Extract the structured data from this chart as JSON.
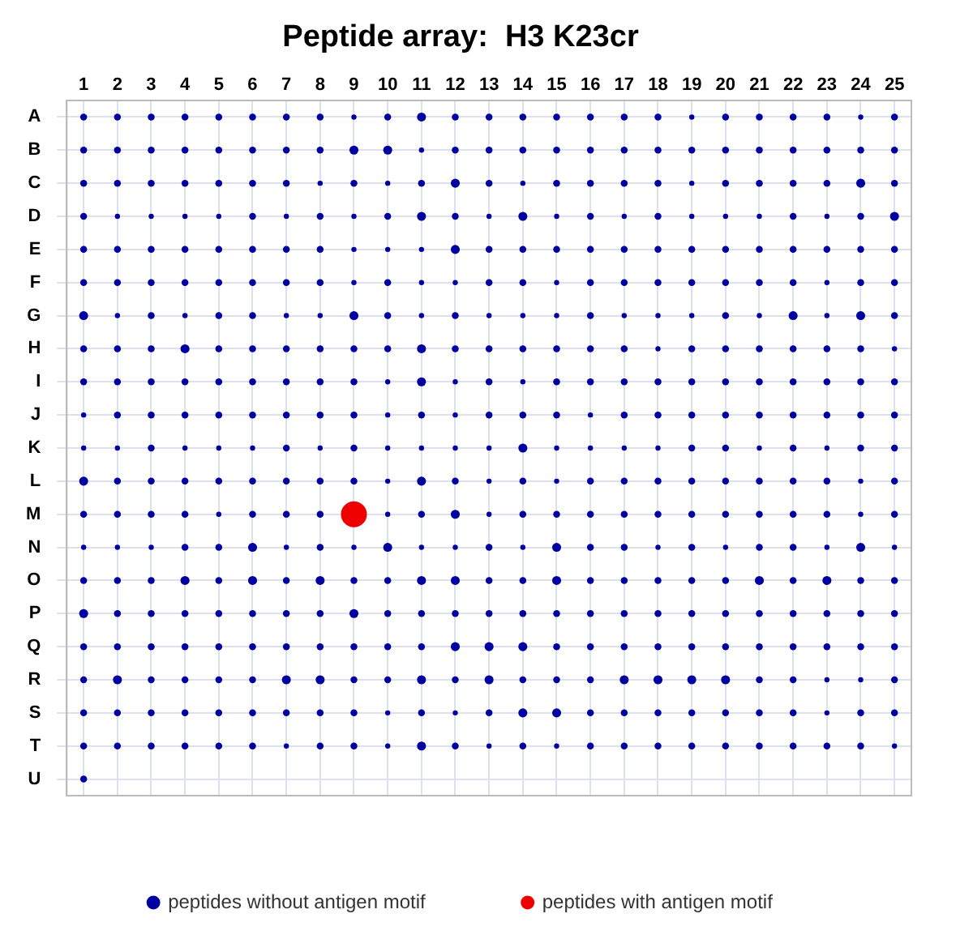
{
  "chart_data": {
    "type": "bubble",
    "orientation": "horizontal",
    "title": "Peptide array:  H3 K23cr",
    "categories": [
      "A",
      "B",
      "C",
      "D",
      "E",
      "F",
      "G",
      "H",
      "I",
      "J",
      "K",
      "L",
      "M",
      "N",
      "O",
      "P",
      "Q",
      "R",
      "S",
      "T",
      "U"
    ],
    "xlim": [
      0.5,
      25.5
    ],
    "xticks": [
      1,
      2,
      3,
      4,
      5,
      6,
      7,
      8,
      9,
      10,
      11,
      12,
      13,
      14,
      15,
      16,
      17,
      18,
      19,
      20,
      21,
      22,
      23,
      24,
      25
    ],
    "grid": true,
    "legend": "bottom",
    "marker": "circle",
    "series": [
      {
        "name": "peptides without antigen motif",
        "color": "#0000a0",
        "values": [
          1,
          1,
          1,
          1,
          1,
          1,
          1,
          1,
          1,
          1,
          1,
          1,
          1,
          1,
          1,
          1,
          1,
          1,
          1,
          1,
          1
        ],
        "sizes": [
          0.07,
          0.07,
          0.07,
          0.07,
          0.07,
          0.07,
          0.12,
          0.07,
          0.07,
          0.04,
          0.04,
          0.12,
          0.07,
          0.04,
          0.07,
          0.12,
          0.07,
          0.07,
          0.07,
          0.07,
          0.07
        ]
      },
      {
        "color": "#0000a0",
        "values": [
          2,
          2,
          2,
          2,
          2,
          2,
          2,
          2,
          2,
          2,
          2,
          2,
          2,
          2,
          2,
          2,
          2,
          2,
          2,
          2,
          null
        ],
        "sizes": [
          0.07,
          0.07,
          0.07,
          0.04,
          0.07,
          0.07,
          0.04,
          0.07,
          0.07,
          0.07,
          0.04,
          0.07,
          0.07,
          0.04,
          0.07,
          0.07,
          0.07,
          0.12,
          0.07,
          0.07,
          null
        ]
      },
      {
        "color": "#0000a0",
        "values": [
          3,
          3,
          3,
          3,
          3,
          3,
          3,
          3,
          3,
          3,
          3,
          3,
          3,
          3,
          3,
          3,
          3,
          3,
          3,
          3,
          null
        ],
        "sizes": [
          0.07,
          0.07,
          0.07,
          0.04,
          0.07,
          0.07,
          0.07,
          0.07,
          0.07,
          0.07,
          0.07,
          0.07,
          0.07,
          0.04,
          0.07,
          0.07,
          0.07,
          0.07,
          0.07,
          0.07,
          null
        ]
      },
      {
        "color": "#0000a0",
        "values": [
          4,
          4,
          4,
          4,
          4,
          4,
          4,
          4,
          4,
          4,
          4,
          4,
          4,
          4,
          4,
          4,
          4,
          4,
          4,
          4,
          null
        ],
        "sizes": [
          0.07,
          0.07,
          0.07,
          0.04,
          0.07,
          0.07,
          0.04,
          0.12,
          0.07,
          0.07,
          0.04,
          0.07,
          0.07,
          0.07,
          0.12,
          0.07,
          0.07,
          0.07,
          0.07,
          0.07,
          null
        ]
      },
      {
        "color": "#0000a0",
        "values": [
          5,
          5,
          5,
          5,
          5,
          5,
          5,
          5,
          5,
          5,
          5,
          5,
          5,
          5,
          5,
          5,
          5,
          5,
          5,
          5,
          null
        ],
        "sizes": [
          0.07,
          0.07,
          0.07,
          0.04,
          0.07,
          0.07,
          0.07,
          0.07,
          0.07,
          0.07,
          0.04,
          0.07,
          0.04,
          0.07,
          0.07,
          0.07,
          0.07,
          0.07,
          0.07,
          0.07,
          null
        ]
      },
      {
        "color": "#0000a0",
        "values": [
          6,
          6,
          6,
          6,
          6,
          6,
          6,
          6,
          6,
          6,
          6,
          6,
          6,
          6,
          6,
          6,
          6,
          6,
          6,
          6,
          null
        ],
        "sizes": [
          0.07,
          0.07,
          0.07,
          0.07,
          0.07,
          0.07,
          0.07,
          0.07,
          0.07,
          0.07,
          0.04,
          0.07,
          0.07,
          0.12,
          0.12,
          0.07,
          0.07,
          0.07,
          0.07,
          0.07,
          null
        ]
      },
      {
        "color": "#0000a0",
        "values": [
          7,
          7,
          7,
          7,
          7,
          7,
          7,
          7,
          7,
          7,
          7,
          7,
          7,
          7,
          7,
          7,
          7,
          7,
          7,
          7,
          null
        ],
        "sizes": [
          0.07,
          0.07,
          0.07,
          0.04,
          0.07,
          0.07,
          0.04,
          0.07,
          0.07,
          0.07,
          0.07,
          0.07,
          0.07,
          0.04,
          0.07,
          0.07,
          0.07,
          0.12,
          0.07,
          0.04,
          null
        ]
      },
      {
        "color": "#0000a0",
        "values": [
          8,
          8,
          8,
          8,
          8,
          8,
          8,
          8,
          8,
          8,
          8,
          8,
          8,
          8,
          8,
          8,
          8,
          8,
          8,
          8,
          null
        ],
        "sizes": [
          0.07,
          0.07,
          0.04,
          0.07,
          0.07,
          0.07,
          0.04,
          0.07,
          0.07,
          0.07,
          0.04,
          0.07,
          0.07,
          0.07,
          0.12,
          0.07,
          0.07,
          0.12,
          0.07,
          0.07,
          null
        ]
      },
      {
        "color": "#0000a0",
        "values": [
          9,
          9,
          9,
          9,
          9,
          9,
          9,
          9,
          9,
          9,
          9,
          9,
          null,
          9,
          9,
          9,
          9,
          9,
          9,
          9,
          null
        ],
        "sizes": [
          0.04,
          0.12,
          0.07,
          0.04,
          0.04,
          0.04,
          0.12,
          0.07,
          0.07,
          0.07,
          0.07,
          0.07,
          null,
          0.04,
          0.07,
          0.12,
          0.07,
          0.07,
          0.07,
          0.07,
          null
        ]
      },
      {
        "color": "#0000a0",
        "values": [
          10,
          10,
          10,
          10,
          10,
          10,
          10,
          10,
          10,
          10,
          10,
          10,
          10,
          10,
          10,
          10,
          10,
          10,
          10,
          10,
          null
        ],
        "sizes": [
          0.07,
          0.12,
          0.04,
          0.07,
          0.04,
          0.07,
          0.07,
          0.07,
          0.04,
          0.04,
          0.04,
          0.04,
          0.04,
          0.12,
          0.07,
          0.07,
          0.07,
          0.07,
          0.04,
          0.04,
          null
        ]
      },
      {
        "color": "#0000a0",
        "values": [
          11,
          11,
          11,
          11,
          11,
          11,
          11,
          11,
          11,
          11,
          11,
          11,
          11,
          11,
          11,
          11,
          11,
          11,
          11,
          11,
          null
        ],
        "sizes": [
          0.12,
          0.04,
          0.07,
          0.12,
          0.04,
          0.04,
          0.04,
          0.12,
          0.12,
          0.07,
          0.04,
          0.12,
          0.07,
          0.04,
          0.12,
          0.07,
          0.07,
          0.12,
          0.07,
          0.12,
          null
        ]
      },
      {
        "color": "#0000a0",
        "values": [
          12,
          12,
          12,
          12,
          12,
          12,
          12,
          12,
          12,
          12,
          12,
          12,
          12,
          12,
          12,
          12,
          12,
          12,
          12,
          12,
          null
        ],
        "sizes": [
          0.07,
          0.07,
          0.12,
          0.07,
          0.12,
          0.04,
          0.07,
          0.07,
          0.04,
          0.04,
          0.04,
          0.07,
          0.12,
          0.04,
          0.12,
          0.07,
          0.12,
          0.07,
          0.04,
          0.07,
          null
        ]
      },
      {
        "color": "#0000a0",
        "values": [
          13,
          13,
          13,
          13,
          13,
          13,
          13,
          13,
          13,
          13,
          13,
          13,
          13,
          13,
          13,
          13,
          13,
          13,
          13,
          13,
          null
        ],
        "sizes": [
          0.07,
          0.07,
          0.07,
          0.04,
          0.07,
          0.07,
          0.04,
          0.07,
          0.07,
          0.07,
          0.04,
          0.04,
          0.04,
          0.07,
          0.07,
          0.07,
          0.12,
          0.12,
          0.07,
          0.04,
          null
        ]
      },
      {
        "color": "#0000a0",
        "values": [
          14,
          14,
          14,
          14,
          14,
          14,
          14,
          14,
          14,
          14,
          14,
          14,
          14,
          14,
          14,
          14,
          14,
          14,
          14,
          14,
          null
        ],
        "sizes": [
          0.07,
          0.07,
          0.04,
          0.12,
          0.07,
          0.07,
          0.04,
          0.07,
          0.04,
          0.07,
          0.12,
          0.07,
          0.07,
          0.04,
          0.07,
          0.07,
          0.12,
          0.07,
          0.12,
          0.07,
          null
        ]
      },
      {
        "color": "#0000a0",
        "values": [
          15,
          15,
          15,
          15,
          15,
          15,
          15,
          15,
          15,
          15,
          15,
          15,
          15,
          15,
          15,
          15,
          15,
          15,
          15,
          15,
          null
        ],
        "sizes": [
          0.07,
          0.07,
          0.07,
          0.04,
          0.07,
          0.04,
          0.04,
          0.07,
          0.07,
          0.07,
          0.04,
          0.04,
          0.07,
          0.12,
          0.12,
          0.07,
          0.07,
          0.07,
          0.12,
          0.04,
          null
        ]
      },
      {
        "color": "#0000a0",
        "values": [
          16,
          16,
          16,
          16,
          16,
          16,
          16,
          16,
          16,
          16,
          16,
          16,
          16,
          16,
          16,
          16,
          16,
          16,
          16,
          16,
          null
        ],
        "sizes": [
          0.07,
          0.07,
          0.07,
          0.07,
          0.07,
          0.07,
          0.07,
          0.07,
          0.07,
          0.04,
          0.04,
          0.07,
          0.07,
          0.07,
          0.07,
          0.07,
          0.07,
          0.07,
          0.07,
          0.07,
          null
        ]
      },
      {
        "color": "#0000a0",
        "values": [
          17,
          17,
          17,
          17,
          17,
          17,
          17,
          17,
          17,
          17,
          17,
          17,
          17,
          17,
          17,
          17,
          17,
          17,
          17,
          17,
          null
        ],
        "sizes": [
          0.07,
          0.07,
          0.07,
          0.04,
          0.07,
          0.07,
          0.04,
          0.07,
          0.07,
          0.07,
          0.04,
          0.07,
          0.07,
          0.07,
          0.07,
          0.07,
          0.07,
          0.12,
          0.07,
          0.07,
          null
        ]
      },
      {
        "color": "#0000a0",
        "values": [
          18,
          18,
          18,
          18,
          18,
          18,
          18,
          18,
          18,
          18,
          18,
          18,
          18,
          18,
          18,
          18,
          18,
          18,
          18,
          18,
          null
        ],
        "sizes": [
          0.07,
          0.07,
          0.07,
          0.07,
          0.07,
          0.07,
          0.04,
          0.04,
          0.07,
          0.07,
          0.04,
          0.07,
          0.07,
          0.04,
          0.07,
          0.07,
          0.07,
          0.12,
          0.07,
          0.07,
          null
        ]
      },
      {
        "color": "#0000a0",
        "values": [
          19,
          19,
          19,
          19,
          19,
          19,
          19,
          19,
          19,
          19,
          19,
          19,
          19,
          19,
          19,
          19,
          19,
          19,
          19,
          19,
          null
        ],
        "sizes": [
          0.04,
          0.07,
          0.04,
          0.04,
          0.07,
          0.07,
          0.04,
          0.07,
          0.07,
          0.07,
          0.07,
          0.07,
          0.07,
          0.07,
          0.07,
          0.07,
          0.07,
          0.12,
          0.07,
          0.07,
          null
        ]
      },
      {
        "color": "#0000a0",
        "values": [
          20,
          20,
          20,
          20,
          20,
          20,
          20,
          20,
          20,
          20,
          20,
          20,
          20,
          20,
          20,
          20,
          20,
          20,
          20,
          20,
          null
        ],
        "sizes": [
          0.07,
          0.07,
          0.07,
          0.04,
          0.07,
          0.07,
          0.07,
          0.07,
          0.07,
          0.07,
          0.07,
          0.07,
          0.07,
          0.04,
          0.07,
          0.07,
          0.07,
          0.12,
          0.07,
          0.07,
          null
        ]
      },
      {
        "color": "#0000a0",
        "values": [
          21,
          21,
          21,
          21,
          21,
          21,
          21,
          21,
          21,
          21,
          21,
          21,
          21,
          21,
          21,
          21,
          21,
          21,
          21,
          21,
          null
        ],
        "sizes": [
          0.07,
          0.07,
          0.07,
          0.04,
          0.07,
          0.07,
          0.04,
          0.07,
          0.07,
          0.07,
          0.04,
          0.07,
          0.07,
          0.07,
          0.12,
          0.07,
          0.07,
          0.07,
          0.07,
          0.07,
          null
        ]
      },
      {
        "color": "#0000a0",
        "values": [
          22,
          22,
          22,
          22,
          22,
          22,
          22,
          22,
          22,
          22,
          22,
          22,
          22,
          22,
          22,
          22,
          22,
          22,
          22,
          22,
          null
        ],
        "sizes": [
          0.07,
          0.07,
          0.07,
          0.07,
          0.07,
          0.07,
          0.12,
          0.07,
          0.07,
          0.07,
          0.07,
          0.07,
          0.07,
          0.07,
          0.07,
          0.07,
          0.07,
          0.07,
          0.07,
          0.07,
          null
        ]
      },
      {
        "color": "#0000a0",
        "values": [
          23,
          23,
          23,
          23,
          23,
          23,
          23,
          23,
          23,
          23,
          23,
          23,
          23,
          23,
          23,
          23,
          23,
          23,
          23,
          23,
          null
        ],
        "sizes": [
          0.07,
          0.07,
          0.07,
          0.04,
          0.07,
          0.04,
          0.04,
          0.07,
          0.07,
          0.07,
          0.04,
          0.07,
          0.07,
          0.04,
          0.12,
          0.07,
          0.07,
          0.04,
          0.04,
          0.07,
          null
        ]
      },
      {
        "color": "#0000a0",
        "values": [
          24,
          24,
          24,
          24,
          24,
          24,
          24,
          24,
          24,
          24,
          24,
          24,
          24,
          24,
          24,
          24,
          24,
          24,
          24,
          24,
          null
        ],
        "sizes": [
          0.04,
          0.07,
          0.12,
          0.07,
          0.07,
          0.07,
          0.12,
          0.07,
          0.07,
          0.07,
          0.07,
          0.04,
          0.04,
          0.12,
          0.07,
          0.07,
          0.07,
          0.04,
          0.07,
          0.07,
          null
        ]
      },
      {
        "color": "#0000a0",
        "values": [
          25,
          25,
          25,
          25,
          25,
          25,
          25,
          25,
          25,
          25,
          25,
          25,
          25,
          25,
          25,
          25,
          25,
          25,
          25,
          25,
          null
        ],
        "sizes": [
          0.07,
          0.07,
          0.07,
          0.12,
          0.07,
          0.07,
          0.07,
          0.04,
          0.07,
          0.07,
          0.07,
          0.07,
          0.07,
          0.04,
          0.07,
          0.07,
          0.07,
          0.07,
          0.07,
          0.04,
          null
        ]
      },
      {
        "name": "peptides with antigen motif",
        "color": "#ee0000",
        "values": [
          null,
          null,
          null,
          null,
          null,
          null,
          null,
          null,
          null,
          null,
          null,
          null,
          9,
          null,
          null,
          null,
          null,
          null,
          null,
          null,
          null
        ],
        "sizes": [
          null,
          null,
          null,
          null,
          null,
          null,
          null,
          null,
          null,
          null,
          null,
          null,
          1,
          null,
          null,
          null,
          null,
          null,
          null,
          null,
          null
        ]
      }
    ]
  }
}
